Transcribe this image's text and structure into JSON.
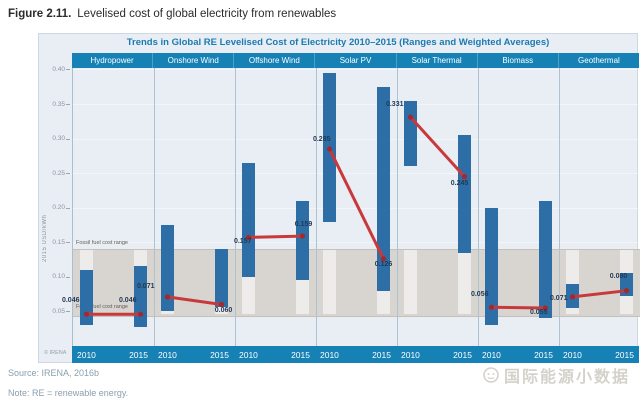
{
  "figure": {
    "label": "Figure 2.11.",
    "caption": "Levelised cost of global electricity from renewables"
  },
  "chart": {
    "title": "Trends in Global RE Levelised Cost of Electricity 2010–2015 (Ranges and Weighted Averages)",
    "y_axis_label": "2015 USD/kWh",
    "fossil_band_label": "Fossil fuel cost range",
    "copyright": "© IRENA",
    "colors": {
      "header_blue": "#1581b5",
      "bar_blue": "#2e6ea6",
      "line_red": "#c8393c",
      "dot_red": "#a4282c",
      "band_gray": "#d6d3cc",
      "plot_bg": "#e9eef4"
    }
  },
  "chart_data": {
    "type": "bar",
    "title": "Trends in Global RE Levelised Cost of Electricity 2010–2015 (Ranges and Weighted Averages)",
    "ylabel": "2015 USD/kWh",
    "ylim": [
      0,
      0.403
    ],
    "yticks": [
      0.05,
      0.1,
      0.15,
      0.2,
      0.25,
      0.3,
      0.35,
      0.4
    ],
    "years": [
      "2010",
      "2015"
    ],
    "fossil_fuel_cost_range": {
      "min": 0.045,
      "max": 0.14
    },
    "technologies": [
      {
        "name": "Hydropower",
        "bars": [
          {
            "year": "2010",
            "min": 0.03,
            "max": 0.11,
            "avg": 0.046
          },
          {
            "year": "2015",
            "min": 0.028,
            "max": 0.115,
            "avg": 0.046
          }
        ]
      },
      {
        "name": "Onshore Wind",
        "bars": [
          {
            "year": "2010",
            "min": 0.05,
            "max": 0.175,
            "avg": 0.071
          },
          {
            "year": "2015",
            "min": 0.057,
            "max": 0.14,
            "avg": 0.06
          }
        ]
      },
      {
        "name": "Offshore Wind",
        "bars": [
          {
            "year": "2010",
            "min": 0.1,
            "max": 0.265,
            "avg": 0.157
          },
          {
            "year": "2015",
            "min": 0.095,
            "max": 0.21,
            "avg": 0.159
          }
        ]
      },
      {
        "name": "Solar PV",
        "bars": [
          {
            "year": "2010",
            "min": 0.18,
            "max": 0.395,
            "avg": 0.285
          },
          {
            "year": "2015",
            "min": 0.08,
            "max": 0.375,
            "avg": 0.126
          }
        ]
      },
      {
        "name": "Solar Thermal",
        "bars": [
          {
            "year": "2010",
            "min": 0.26,
            "max": 0.355,
            "avg": 0.331
          },
          {
            "year": "2015",
            "min": 0.135,
            "max": 0.305,
            "avg": 0.245
          }
        ]
      },
      {
        "name": "Biomass",
        "bars": [
          {
            "year": "2010",
            "min": 0.03,
            "max": 0.2,
            "avg": 0.056
          },
          {
            "year": "2015",
            "min": 0.04,
            "max": 0.21,
            "avg": 0.055
          }
        ]
      },
      {
        "name": "Geothermal",
        "bars": [
          {
            "year": "2010",
            "min": 0.055,
            "max": 0.09,
            "avg": 0.071
          },
          {
            "year": "2015",
            "min": 0.072,
            "max": 0.105,
            "avg": 0.08
          }
        ]
      }
    ]
  },
  "footer": {
    "source": "Source: IRENA, 2016b",
    "note": "Note: RE = renewable energy.",
    "watermark": "国际能源小数据"
  }
}
